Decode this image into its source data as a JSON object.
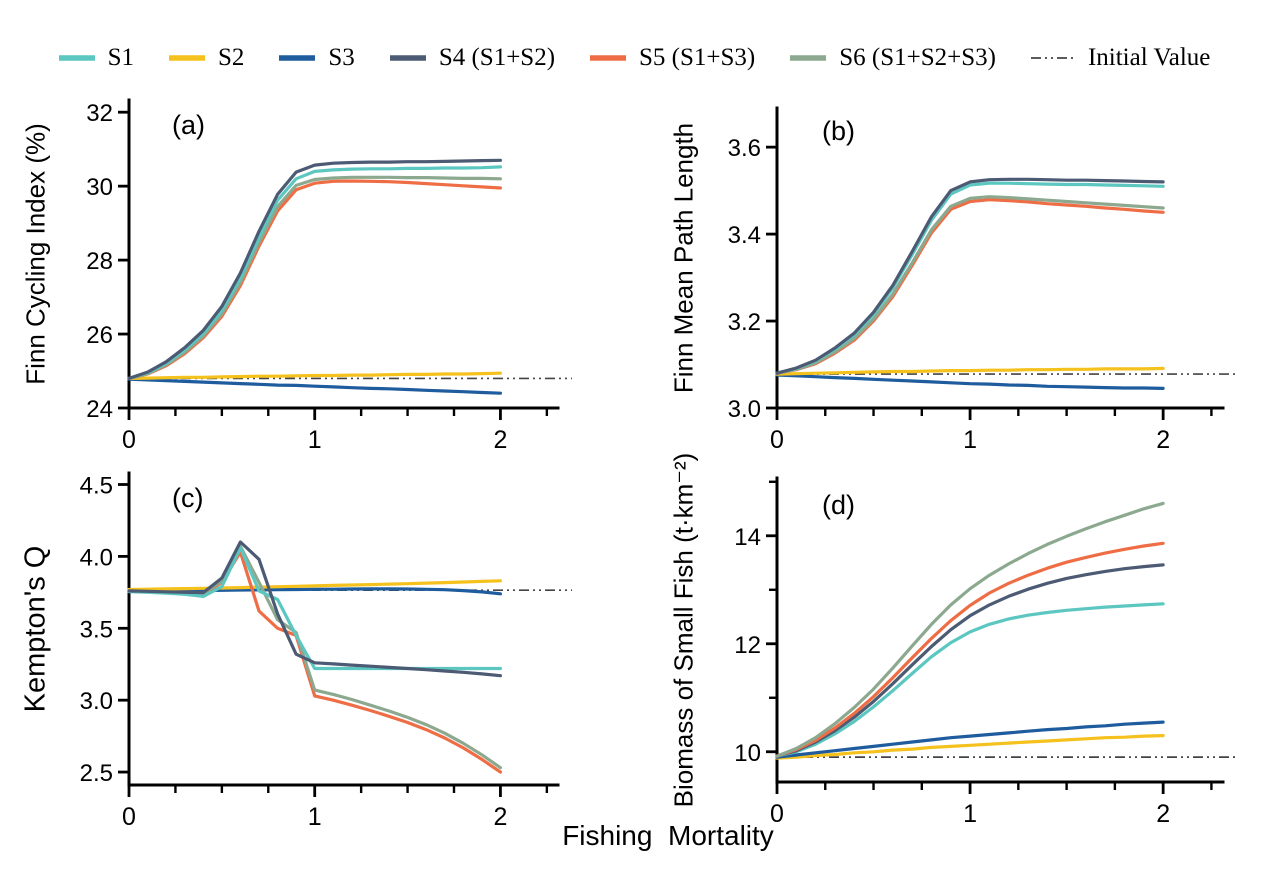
{
  "xlabel": "Fishing  Mortality",
  "colors": {
    "S1": "#5CC7C1",
    "S2": "#F5C11D",
    "S3": "#1E5C9E",
    "S4": "#4C5A74",
    "S5": "#EF6D45",
    "S6": "#8CA98F",
    "initial": "#444444",
    "axis": "#000000"
  },
  "legend": {
    "items": [
      {
        "key": "S1",
        "label": "S1",
        "style": "solid"
      },
      {
        "key": "S2",
        "label": "S2",
        "style": "solid"
      },
      {
        "key": "S3",
        "label": "S3",
        "style": "solid"
      },
      {
        "key": "S4",
        "label": "S4 (S1+S2)",
        "style": "solid"
      },
      {
        "key": "S5",
        "label": "S5 (S1+S3)",
        "style": "solid"
      },
      {
        "key": "S6",
        "label": "S6 (S1+S2+S3)",
        "style": "solid"
      },
      {
        "key": "initial",
        "label": "Initial Value",
        "style": "dashdot"
      }
    ]
  },
  "chart_data": [
    {
      "type": "line",
      "tag": "(a)",
      "ylabel": "Finn Cycling Index (%)",
      "xlim": [
        0,
        2.31
      ],
      "ylim": [
        24,
        32.33
      ],
      "xticks": [
        0,
        1,
        2
      ],
      "xtick_labels": [
        "0",
        "1",
        "2"
      ],
      "xticks_minor": [
        0.25,
        0.5,
        0.75,
        1.25,
        1.5,
        1.75,
        2.25
      ],
      "yticks": [
        24,
        26,
        28,
        30,
        32
      ],
      "ytick_labels": [
        "24",
        "26",
        "28",
        "30",
        "32"
      ],
      "yticks_minor": [],
      "initial_value": 24.8,
      "x": [
        0,
        0.1,
        0.2,
        0.3,
        0.4,
        0.5,
        0.6,
        0.7,
        0.8,
        0.9,
        1.0,
        1.1,
        1.2,
        1.3,
        1.4,
        1.5,
        1.6,
        1.7,
        1.8,
        1.9,
        2.0
      ],
      "order": [
        "initial",
        "S3",
        "S2",
        "S5",
        "S6",
        "S1",
        "S4"
      ],
      "series": [
        {
          "key": "S1",
          "values": [
            24.8,
            24.95,
            25.21,
            25.57,
            26.02,
            26.64,
            27.52,
            28.62,
            29.62,
            30.2,
            30.4,
            30.44,
            30.46,
            30.47,
            30.47,
            30.48,
            30.48,
            30.49,
            30.49,
            30.5,
            30.52
          ]
        },
        {
          "key": "S2",
          "values": [
            24.8,
            24.81,
            24.82,
            24.83,
            24.83,
            24.84,
            24.85,
            24.86,
            24.86,
            24.87,
            24.88,
            24.88,
            24.89,
            24.89,
            24.9,
            24.91,
            24.91,
            24.92,
            24.92,
            24.93,
            24.94
          ]
        },
        {
          "key": "S3",
          "values": [
            24.78,
            24.76,
            24.74,
            24.72,
            24.7,
            24.68,
            24.66,
            24.64,
            24.62,
            24.61,
            24.59,
            24.57,
            24.55,
            24.53,
            24.52,
            24.5,
            24.48,
            24.46,
            24.44,
            24.42,
            24.4
          ]
        },
        {
          "key": "S4",
          "values": [
            24.8,
            24.97,
            25.25,
            25.63,
            26.1,
            26.75,
            27.65,
            28.78,
            29.78,
            30.38,
            30.57,
            30.62,
            30.64,
            30.65,
            30.65,
            30.66,
            30.66,
            30.67,
            30.68,
            30.69,
            30.7
          ]
        },
        {
          "key": "S5",
          "values": [
            24.8,
            24.92,
            25.14,
            25.47,
            25.9,
            26.48,
            27.31,
            28.38,
            29.33,
            29.9,
            30.08,
            30.13,
            30.14,
            30.13,
            30.12,
            30.1,
            30.07,
            30.04,
            30.01,
            29.98,
            29.95
          ]
        },
        {
          "key": "S6",
          "values": [
            24.8,
            24.93,
            25.17,
            25.51,
            25.95,
            26.55,
            27.4,
            28.48,
            29.45,
            30.02,
            30.18,
            30.22,
            30.24,
            30.24,
            30.24,
            30.23,
            30.23,
            30.22,
            30.21,
            30.21,
            30.2
          ]
        }
      ]
    },
    {
      "type": "line",
      "tag": "(b)",
      "ylabel": "Finn Mean Path Length",
      "xlim": [
        0,
        2.31
      ],
      "ylim": [
        3.0,
        3.69
      ],
      "xticks": [
        0,
        1,
        2
      ],
      "xtick_labels": [
        "0",
        "1",
        "2"
      ],
      "xticks_minor": [
        0.25,
        0.5,
        0.75,
        1.25,
        1.5,
        1.75,
        2.25
      ],
      "yticks": [
        3.0,
        3.2,
        3.4,
        3.6
      ],
      "ytick_labels": [
        "3.0",
        "3.2",
        "3.4",
        "3.6"
      ],
      "yticks_minor": [],
      "initial_value": 3.078,
      "x": [
        0,
        0.1,
        0.2,
        0.3,
        0.4,
        0.5,
        0.6,
        0.7,
        0.8,
        0.9,
        1.0,
        1.1,
        1.2,
        1.3,
        1.4,
        1.5,
        1.6,
        1.7,
        1.8,
        1.9,
        2.0
      ],
      "order": [
        "initial",
        "S3",
        "S2",
        "S5",
        "S6",
        "S1",
        "S4"
      ],
      "series": [
        {
          "key": "S1",
          "values": [
            3.08,
            3.091,
            3.108,
            3.135,
            3.168,
            3.215,
            3.276,
            3.353,
            3.432,
            3.492,
            3.513,
            3.517,
            3.517,
            3.516,
            3.515,
            3.514,
            3.514,
            3.513,
            3.512,
            3.511,
            3.51
          ]
        },
        {
          "key": "S2",
          "values": [
            3.078,
            3.079,
            3.08,
            3.081,
            3.082,
            3.083,
            3.084,
            3.084,
            3.085,
            3.086,
            3.086,
            3.087,
            3.087,
            3.088,
            3.088,
            3.089,
            3.089,
            3.09,
            3.09,
            3.09,
            3.091
          ]
        },
        {
          "key": "S3",
          "values": [
            3.076,
            3.074,
            3.072,
            3.07,
            3.068,
            3.066,
            3.064,
            3.062,
            3.06,
            3.058,
            3.056,
            3.055,
            3.053,
            3.052,
            3.05,
            3.049,
            3.048,
            3.047,
            3.046,
            3.046,
            3.045
          ]
        },
        {
          "key": "S4",
          "values": [
            3.08,
            3.092,
            3.11,
            3.138,
            3.172,
            3.22,
            3.282,
            3.36,
            3.44,
            3.5,
            3.52,
            3.525,
            3.526,
            3.526,
            3.525,
            3.524,
            3.524,
            3.523,
            3.522,
            3.521,
            3.52
          ]
        },
        {
          "key": "S5",
          "values": [
            3.08,
            3.088,
            3.102,
            3.126,
            3.156,
            3.2,
            3.256,
            3.328,
            3.403,
            3.457,
            3.475,
            3.479,
            3.477,
            3.474,
            3.47,
            3.467,
            3.464,
            3.46,
            3.457,
            3.453,
            3.45
          ]
        },
        {
          "key": "S6",
          "values": [
            3.08,
            3.089,
            3.104,
            3.129,
            3.16,
            3.204,
            3.262,
            3.334,
            3.41,
            3.464,
            3.482,
            3.486,
            3.484,
            3.481,
            3.478,
            3.475,
            3.472,
            3.469,
            3.466,
            3.463,
            3.46
          ]
        }
      ]
    },
    {
      "type": "line",
      "tag": "(c)",
      "ylabel": "Kempton's Q",
      "xlim": [
        0,
        2.31
      ],
      "ylim": [
        2.41,
        4.58
      ],
      "xticks": [
        0,
        1,
        2
      ],
      "xtick_labels": [
        "0",
        "1",
        "2"
      ],
      "xticks_minor": [
        0.25,
        0.5,
        0.75,
        1.25,
        1.5,
        1.75,
        2.25
      ],
      "yticks": [
        2.5,
        3.0,
        3.5,
        4.0,
        4.5
      ],
      "ytick_labels": [
        "2.5",
        "3.0",
        "3.5",
        "4.0",
        "4.5"
      ],
      "yticks_minor": [],
      "initial_value": 3.765,
      "x": [
        0,
        0.1,
        0.2,
        0.3,
        0.4,
        0.5,
        0.6,
        0.7,
        0.8,
        0.9,
        1.0,
        1.1,
        1.2,
        1.3,
        1.4,
        1.5,
        1.6,
        1.7,
        1.8,
        1.9,
        2.0
      ],
      "order": [
        "initial",
        "S3",
        "S2",
        "S5",
        "S6",
        "S1",
        "S4"
      ],
      "series": [
        {
          "key": "S1",
          "values": [
            3.755,
            3.75,
            3.744,
            3.736,
            3.722,
            3.79,
            4.06,
            3.76,
            3.7,
            3.45,
            3.22,
            3.22,
            3.22,
            3.22,
            3.22,
            3.22,
            3.22,
            3.22,
            3.22,
            3.22,
            3.22
          ]
        },
        {
          "key": "S2",
          "values": [
            3.77,
            3.772,
            3.774,
            3.776,
            3.778,
            3.78,
            3.783,
            3.786,
            3.789,
            3.792,
            3.795,
            3.798,
            3.801,
            3.804,
            3.807,
            3.81,
            3.814,
            3.818,
            3.822,
            3.826,
            3.83
          ]
        },
        {
          "key": "S3",
          "values": [
            3.758,
            3.759,
            3.76,
            3.762,
            3.763,
            3.764,
            3.766,
            3.767,
            3.768,
            3.77,
            3.771,
            3.772,
            3.773,
            3.774,
            3.774,
            3.773,
            3.771,
            3.768,
            3.762,
            3.753,
            3.74
          ]
        },
        {
          "key": "S4",
          "values": [
            3.76,
            3.757,
            3.754,
            3.75,
            3.748,
            3.85,
            4.1,
            3.98,
            3.6,
            3.32,
            3.26,
            3.252,
            3.244,
            3.236,
            3.228,
            3.22,
            3.212,
            3.203,
            3.194,
            3.183,
            3.17
          ]
        },
        {
          "key": "S5",
          "values": [
            3.757,
            3.753,
            3.749,
            3.745,
            3.74,
            3.82,
            4.03,
            3.62,
            3.5,
            3.45,
            3.03,
            3.0,
            2.965,
            2.928,
            2.888,
            2.845,
            2.795,
            2.737,
            2.668,
            2.588,
            2.5
          ]
        },
        {
          "key": "S6",
          "values": [
            3.758,
            3.755,
            3.751,
            3.747,
            3.744,
            3.828,
            4.07,
            3.82,
            3.56,
            3.47,
            3.07,
            3.04,
            3.005,
            2.965,
            2.925,
            2.88,
            2.83,
            2.77,
            2.7,
            2.62,
            2.53
          ]
        }
      ]
    },
    {
      "type": "line",
      "tag": "(d)",
      "ylabel": "Biomass of Small Fish (t·km⁻²)",
      "xlim": [
        0,
        2.31
      ],
      "ylim": [
        9.44,
        15.07
      ],
      "xticks": [
        0,
        1,
        2
      ],
      "xtick_labels": [
        "0",
        "1",
        "2"
      ],
      "xticks_minor": [
        0.25,
        0.5,
        0.75,
        1.25,
        1.5,
        1.75,
        2.25
      ],
      "yticks": [
        10,
        12,
        14
      ],
      "ytick_labels": [
        "10",
        "12",
        "14"
      ],
      "yticks_minor": [
        11,
        13,
        15
      ],
      "initial_value": 9.9,
      "x": [
        0,
        0.1,
        0.2,
        0.3,
        0.4,
        0.5,
        0.6,
        0.7,
        0.8,
        0.9,
        1.0,
        1.1,
        1.2,
        1.3,
        1.4,
        1.5,
        1.6,
        1.7,
        1.8,
        1.9,
        2.0
      ],
      "order": [
        "initial",
        "S2",
        "S3",
        "S1",
        "S4",
        "S5",
        "S6"
      ],
      "series": [
        {
          "key": "S1",
          "values": [
            9.92,
            10.0,
            10.14,
            10.33,
            10.56,
            10.83,
            11.13,
            11.45,
            11.76,
            12.02,
            12.22,
            12.36,
            12.46,
            12.53,
            12.58,
            12.62,
            12.65,
            12.68,
            12.7,
            12.72,
            12.74
          ]
        },
        {
          "key": "S2",
          "values": [
            9.88,
            9.9,
            9.93,
            9.95,
            9.98,
            10.0,
            10.03,
            10.05,
            10.08,
            10.1,
            10.12,
            10.14,
            10.16,
            10.18,
            10.2,
            10.22,
            10.24,
            10.26,
            10.27,
            10.29,
            10.3
          ]
        },
        {
          "key": "S3",
          "values": [
            9.9,
            9.94,
            9.98,
            10.02,
            10.06,
            10.1,
            10.14,
            10.18,
            10.22,
            10.26,
            10.29,
            10.32,
            10.35,
            10.38,
            10.41,
            10.43,
            10.46,
            10.48,
            10.51,
            10.53,
            10.55
          ]
        },
        {
          "key": "S4",
          "values": [
            9.92,
            10.02,
            10.18,
            10.39,
            10.64,
            10.93,
            11.26,
            11.61,
            11.95,
            12.26,
            12.52,
            12.72,
            12.88,
            13.01,
            13.12,
            13.21,
            13.28,
            13.34,
            13.39,
            13.43,
            13.46
          ]
        },
        {
          "key": "S5",
          "values": [
            9.92,
            10.04,
            10.21,
            10.44,
            10.71,
            11.02,
            11.37,
            11.74,
            12.1,
            12.43,
            12.71,
            12.94,
            13.12,
            13.27,
            13.4,
            13.51,
            13.6,
            13.68,
            13.75,
            13.81,
            13.86
          ]
        },
        {
          "key": "S6",
          "values": [
            9.92,
            10.06,
            10.26,
            10.52,
            10.82,
            11.16,
            11.55,
            11.96,
            12.36,
            12.72,
            13.02,
            13.27,
            13.48,
            13.67,
            13.84,
            13.99,
            14.13,
            14.26,
            14.38,
            14.5,
            14.6
          ]
        }
      ]
    }
  ]
}
